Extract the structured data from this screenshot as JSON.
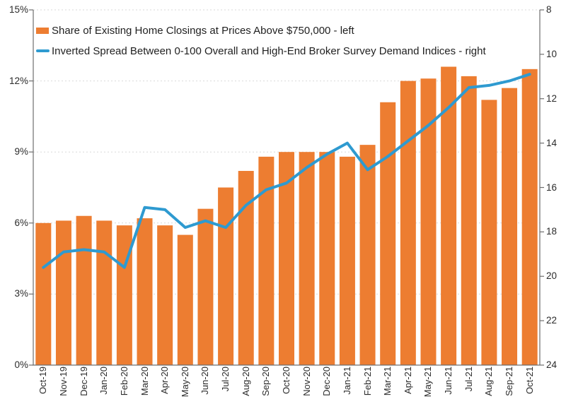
{
  "chart_data": {
    "type": "combo",
    "title": "",
    "categories": [
      "Oct-19",
      "Nov-19",
      "Dec-19",
      "Jan-20",
      "Feb-20",
      "Mar-20",
      "Apr-20",
      "May-20",
      "Jun-20",
      "Jul-20",
      "Aug-20",
      "Sep-20",
      "Oct-20",
      "Nov-20",
      "Dec-20",
      "Jan-21",
      "Feb-21",
      "Mar-21",
      "Apr-21",
      "May-21",
      "Jun-21",
      "Jul-21",
      "Aug-21",
      "Sep-21",
      "Oct-21"
    ],
    "series": [
      {
        "name": "Share of Existing Home Closings at Prices Above $750,000 - left",
        "type": "bar",
        "axis": "left",
        "unit": "percent",
        "color": "#ED7D31",
        "values": [
          6.0,
          6.1,
          6.3,
          6.1,
          5.9,
          6.2,
          5.9,
          5.5,
          6.6,
          7.5,
          8.2,
          8.8,
          9.0,
          9.0,
          9.0,
          8.8,
          9.3,
          11.1,
          12.0,
          12.1,
          12.6,
          12.2,
          11.2,
          11.7,
          12.5
        ]
      },
      {
        "name": "Inverted Spread Between 0-100 Overall and High-End Broker Survey Demand Indices - right",
        "type": "line",
        "axis": "right",
        "color": "#2E9AD0",
        "values": [
          19.6,
          18.9,
          18.8,
          18.9,
          19.6,
          16.9,
          17.0,
          17.8,
          17.5,
          17.8,
          16.8,
          16.1,
          15.8,
          15.1,
          14.5,
          14.0,
          15.2,
          14.6,
          13.9,
          13.2,
          12.4,
          11.5,
          11.4,
          11.2,
          10.9
        ]
      }
    ],
    "left_axis": {
      "min": 0,
      "max": 15,
      "tick_values": [
        0,
        3,
        6,
        9,
        12,
        15
      ],
      "tick_labels": [
        "0%",
        "3%",
        "6%",
        "9%",
        "12%",
        "15%"
      ]
    },
    "right_axis": {
      "min": 8,
      "max": 24,
      "inverted": true,
      "tick_values": [
        8,
        10,
        12,
        14,
        16,
        18,
        20,
        22,
        24
      ],
      "tick_labels": [
        "8",
        "10",
        "12",
        "14",
        "16",
        "18",
        "20",
        "22",
        "24"
      ]
    },
    "grid": "horizontal-dotted",
    "legend_position": "top-left",
    "colors": {
      "bar": "#ED7D31",
      "line": "#2E9AD0",
      "gridline": "#D9D9D9",
      "axis": "#6E6E6E",
      "text": "#2B2B2B"
    }
  }
}
